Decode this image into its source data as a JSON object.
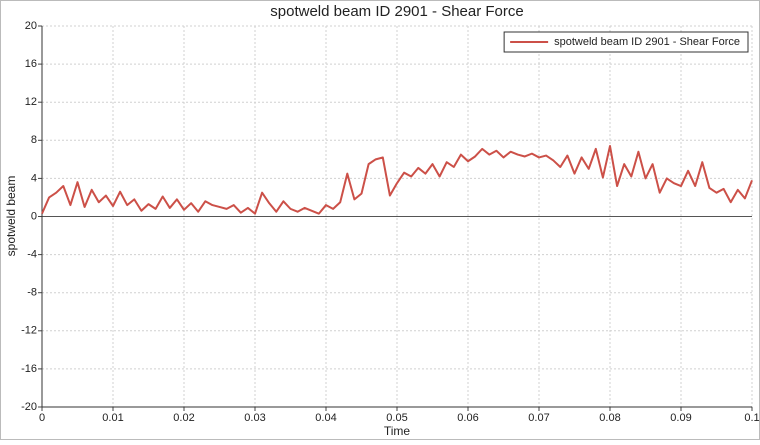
{
  "chart_data": {
    "type": "line",
    "title": "spotweld beam ID 2901 - Shear Force",
    "x_label": "Time",
    "y_label": "spotweld beam",
    "x": [
      0,
      0.001,
      0.002,
      0.003,
      0.004,
      0.005,
      0.006,
      0.007,
      0.008,
      0.009,
      0.01,
      0.011,
      0.012,
      0.013,
      0.014,
      0.015,
      0.016,
      0.017,
      0.018,
      0.019,
      0.02,
      0.021,
      0.022,
      0.023,
      0.024,
      0.025,
      0.026,
      0.027,
      0.028,
      0.029,
      0.03,
      0.031,
      0.032,
      0.033,
      0.034,
      0.035,
      0.036,
      0.037,
      0.038,
      0.039,
      0.04,
      0.041,
      0.042,
      0.043,
      0.044,
      0.045,
      0.046,
      0.047,
      0.048,
      0.049,
      0.05,
      0.051,
      0.052,
      0.053,
      0.054,
      0.055,
      0.056,
      0.057,
      0.058,
      0.059,
      0.06,
      0.061,
      0.062,
      0.063,
      0.064,
      0.065,
      0.066,
      0.067,
      0.068,
      0.069,
      0.07,
      0.071,
      0.072,
      0.073,
      0.074,
      0.075,
      0.076,
      0.077,
      0.078,
      0.079,
      0.08,
      0.081,
      0.082,
      0.083,
      0.084,
      0.085,
      0.086,
      0.087,
      0.088,
      0.089,
      0.09,
      0.091,
      0.092,
      0.093,
      0.094,
      0.095,
      0.096,
      0.097,
      0.098,
      0.099,
      0.1
    ],
    "series": [
      {
        "name": "spotweld beam ID 2901 - Shear Force",
        "color": "#cc5048",
        "values": [
          0.3,
          2.0,
          2.5,
          3.2,
          1.2,
          3.6,
          1.0,
          2.8,
          1.5,
          2.2,
          1.1,
          2.6,
          1.2,
          1.8,
          0.6,
          1.3,
          0.8,
          2.1,
          0.9,
          1.8,
          0.7,
          1.4,
          0.5,
          1.6,
          1.2,
          1.0,
          0.8,
          1.2,
          0.4,
          0.9,
          0.3,
          2.5,
          1.4,
          0.5,
          1.6,
          0.8,
          0.5,
          0.9,
          0.6,
          0.3,
          1.2,
          0.8,
          1.5,
          4.5,
          1.8,
          2.4,
          5.5,
          6.0,
          6.2,
          2.2,
          3.5,
          4.6,
          4.2,
          5.1,
          4.5,
          5.5,
          4.2,
          5.7,
          5.2,
          6.5,
          5.8,
          6.3,
          7.1,
          6.5,
          6.9,
          6.2,
          6.8,
          6.5,
          6.3,
          6.6,
          6.2,
          6.4,
          5.9,
          5.2,
          6.4,
          4.5,
          6.2,
          5.0,
          7.1,
          4.1,
          7.4,
          3.2,
          5.5,
          4.2,
          6.8,
          4.0,
          5.5,
          2.5,
          4.0,
          3.5,
          3.2,
          4.8,
          3.2,
          5.7,
          3.0,
          2.5,
          2.9,
          1.5,
          2.8,
          1.9,
          3.8
        ]
      }
    ],
    "xlim": [
      0,
      0.1
    ],
    "ylim": [
      -20,
      20
    ],
    "xticks": [
      0,
      0.01,
      0.02,
      0.03,
      0.04,
      0.05,
      0.06,
      0.07,
      0.08,
      0.09,
      0.1
    ],
    "yticks": [
      -20,
      -16,
      -12,
      -8,
      -4,
      0,
      4,
      8,
      12,
      16,
      20
    ],
    "grid": true,
    "legend": "upper right"
  }
}
